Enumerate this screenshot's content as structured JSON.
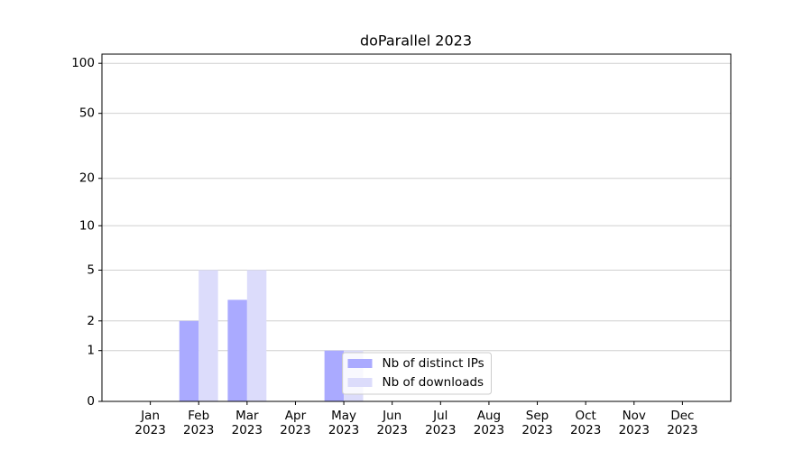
{
  "chart_data": {
    "type": "bar",
    "title": "doParallel 2023",
    "categories": [
      "Jan\n2023",
      "Feb\n2023",
      "Mar\n2023",
      "Apr\n2023",
      "May\n2023",
      "Jun\n2023",
      "Jul\n2023",
      "Aug\n2023",
      "Sep\n2023",
      "Oct\n2023",
      "Nov\n2023",
      "Dec\n2023"
    ],
    "series": [
      {
        "name": "Nb of distinct IPs",
        "color": "#aaaaff",
        "values": [
          0,
          2,
          3,
          0,
          1,
          0,
          0,
          0,
          0,
          0,
          0,
          0
        ]
      },
      {
        "name": "Nb of downloads",
        "color": "#dcdcfb",
        "values": [
          0,
          5,
          5,
          0,
          1,
          0,
          0,
          0,
          0,
          0,
          0,
          0
        ]
      }
    ],
    "yscale": "log1p",
    "ylim": [
      0,
      113.5
    ],
    "yticks": [
      0,
      1,
      2,
      5,
      10,
      20,
      50,
      100
    ],
    "grid": true,
    "legend": "lower center"
  }
}
